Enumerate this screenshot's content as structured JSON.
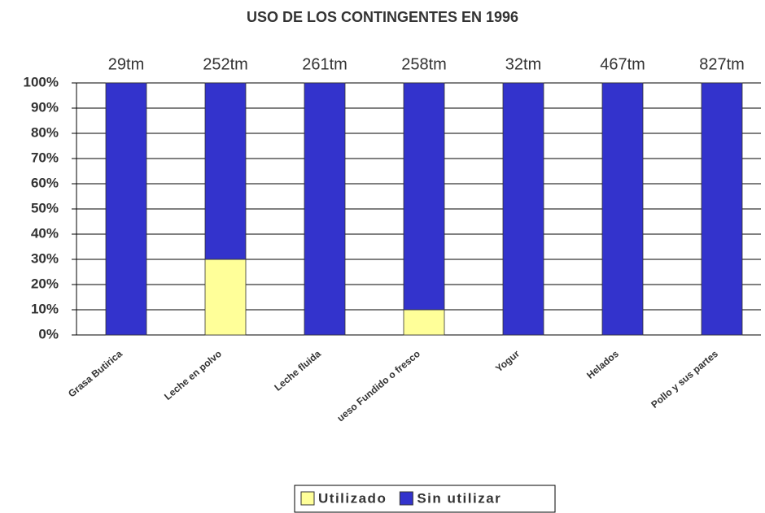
{
  "chart_data": {
    "type": "stacked_bar_100",
    "title": "USO DE LOS CONTINGENTES EN 1996",
    "categories": [
      "Grasa Butirica",
      "Leche en polvo",
      "Leche fluida",
      "ueso Fundido o fresco",
      "Yogur",
      "Helados",
      "Pollo y sus partes"
    ],
    "annotations": [
      "29tm",
      "252tm",
      "261tm",
      "258tm",
      "32tm",
      "467tm",
      "827tm"
    ],
    "series": [
      {
        "name": "Utilizado",
        "color": "#ffff99",
        "values": [
          0,
          30,
          0,
          10,
          0,
          0,
          0
        ]
      },
      {
        "name": "Sin utilizar",
        "color": "#3333cc",
        "values": [
          100,
          70,
          100,
          90,
          100,
          100,
          100
        ]
      }
    ],
    "ylim": [
      0,
      100
    ],
    "yticks": [
      {
        "value": 0,
        "label": "0%"
      },
      {
        "value": 10,
        "label": "10%"
      },
      {
        "value": 20,
        "label": "20%"
      },
      {
        "value": 30,
        "label": "30%"
      },
      {
        "value": 40,
        "label": "40%"
      },
      {
        "value": 50,
        "label": "50%"
      },
      {
        "value": 60,
        "label": "60%"
      },
      {
        "value": 70,
        "label": "70%"
      },
      {
        "value": 80,
        "label": "80%"
      },
      {
        "value": 90,
        "label": "90%"
      },
      {
        "value": 100,
        "label": "100%"
      }
    ],
    "grid": true,
    "legend": "bottom"
  }
}
